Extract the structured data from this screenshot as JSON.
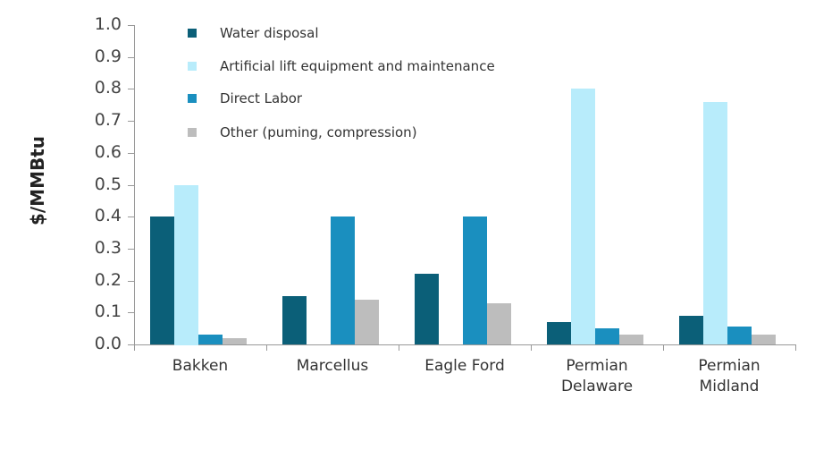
{
  "chart_data": {
    "type": "bar",
    "title": "",
    "xlabel": "",
    "ylabel": "$/MMBtu",
    "ylim": [
      0,
      1.0
    ],
    "yticks": [
      "0.0",
      "0.1",
      "0.2",
      "0.3",
      "0.4",
      "0.5",
      "0.6",
      "0.7",
      "0.8",
      "0.9",
      "1.0"
    ],
    "grid": false,
    "legend_position": "top-left inside",
    "categories": [
      "Bakken",
      "Marcellus",
      "Eagle Ford",
      "Permian\nDelaware",
      "Permian\nMidland"
    ],
    "series": [
      {
        "name": "Water disposal",
        "color": "#0b5f78",
        "values": [
          0.4,
          0.15,
          0.22,
          0.07,
          0.09
        ]
      },
      {
        "name": "Artificial lift equipment and maintenance",
        "color": "#b8ecfb",
        "values": [
          0.5,
          0.0,
          0.0,
          0.8,
          0.76
        ]
      },
      {
        "name": "Direct Labor",
        "color": "#1a8fbf",
        "values": [
          0.03,
          0.4,
          0.4,
          0.05,
          0.055
        ]
      },
      {
        "name": "Other (puming, compression)",
        "color": "#bdbdbd",
        "values": [
          0.02,
          0.14,
          0.13,
          0.03,
          0.03
        ]
      }
    ]
  }
}
